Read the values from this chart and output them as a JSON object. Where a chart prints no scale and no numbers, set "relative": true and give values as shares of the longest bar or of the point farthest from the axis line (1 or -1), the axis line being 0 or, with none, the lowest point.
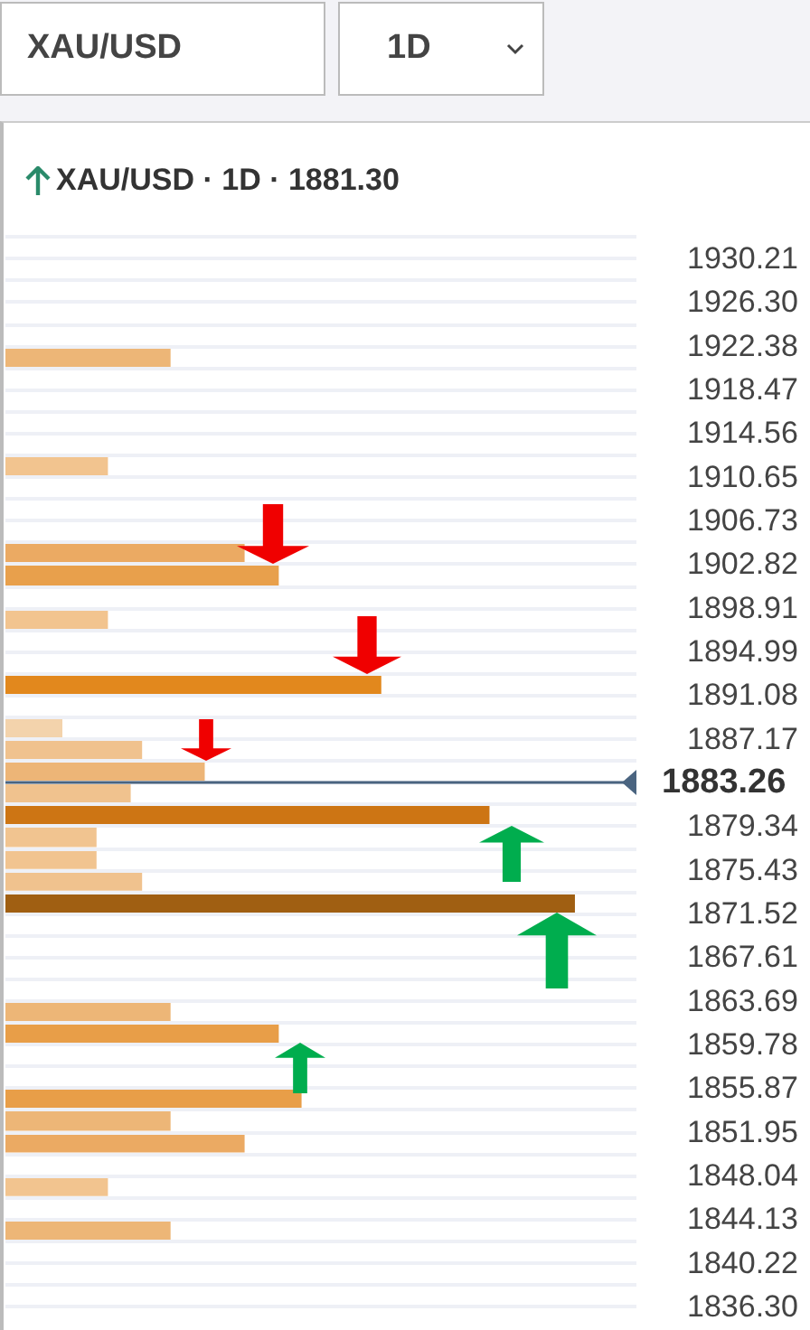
{
  "chart_data": {
    "type": "bar",
    "orientation": "horizontal",
    "relative": true,
    "title": "XAU/USD · 1D · 1881.30",
    "annotations": [
      "XAU/USD",
      "1D"
    ],
    "x": [
      1921.41,
      1911.64,
      1903.82,
      1901.86,
      1897.95,
      1892.09,
      1888.18,
      1886.22,
      1884.27,
      1882.31,
      1880.36,
      1878.4,
      1876.45,
      1874.49,
      1872.54,
      1862.76,
      1860.81,
      1854.94,
      1852.99,
      1851.03,
      1847.12,
      1843.21
    ],
    "values": [
      0.29,
      0.18,
      0.42,
      0.48,
      0.18,
      0.66,
      0.1,
      0.24,
      0.35,
      0.22,
      0.85,
      0.16,
      0.16,
      0.24,
      1,
      0.29,
      0.48,
      0.52,
      0.29,
      0.42,
      0.18,
      0.29
    ],
    "colors": [
      "#edb677",
      "#f2c48f",
      "#ebaa63",
      "#e8a04c",
      "#f2c48f",
      "#e2881d",
      "#f3d3ac",
      "#f0c28e",
      "#edb577",
      "#f0c28e",
      "#cd7514",
      "#f1c490",
      "#f1c490",
      "#f0c28e",
      "#a05f12",
      "#edb677",
      "#e89e48",
      "#e89e48",
      "#edb677",
      "#ebaa63",
      "#f2c48f",
      "#edb677"
    ],
    "ylim": [
      1834.35,
      1932.17
    ],
    "yticks": [
      1930.21,
      {
        "value": 1926.3,
        "label": "1926.30"
      },
      1922.38,
      1918.47,
      1914.56,
      1910.65,
      1906.73,
      1902.82,
      1898.91,
      1894.99,
      1891.08,
      1887.17,
      {
        "value": 1883.26,
        "label": null
      },
      1879.34,
      1875.43,
      1871.52,
      1867.61,
      1863.69,
      1859.78,
      1855.87,
      1851.95,
      1848.04,
      1844.13,
      1840.22,
      {
        "value": 1836.3,
        "label": "1836.30"
      }
    ],
    "ref_lines": [
      {
        "axis": "y",
        "value": 1883.26,
        "label": "1883.26",
        "color": "#4a6480"
      }
    ],
    "grid": true
  }
}
